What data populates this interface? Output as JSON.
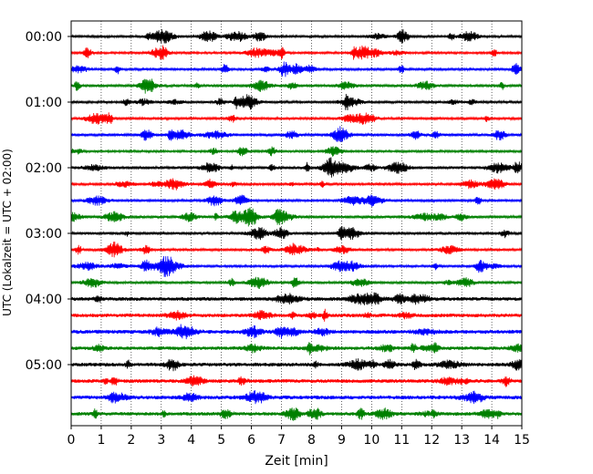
{
  "chart_data": {
    "type": "line",
    "title": "",
    "xlabel": "Zeit  [min]",
    "ylabel": "UTC (Lokalzeit = UTC + 02:00)",
    "xlim": [
      0,
      15
    ],
    "x_ticks": [
      0,
      1,
      2,
      3,
      4,
      5,
      6,
      7,
      8,
      9,
      10,
      11,
      12,
      13,
      14,
      15
    ],
    "x_tick_labels": [
      "0",
      "1",
      "2",
      "3",
      "4",
      "5",
      "6",
      "7",
      "8",
      "9",
      "10",
      "11",
      "12",
      "13",
      "14",
      "15"
    ],
    "y_tick_labels": [
      "00:00",
      "01:00",
      "02:00",
      "03:00",
      "04:00",
      "05:00"
    ],
    "vertical_grid": "dotted at every x tick",
    "minutes_per_trace": 15,
    "trace_start_times": [
      "00:00",
      "00:15",
      "00:30",
      "00:45",
      "01:00",
      "01:15",
      "01:30",
      "01:45",
      "02:00",
      "02:15",
      "02:30",
      "02:45",
      "03:00",
      "03:15",
      "03:30",
      "03:45",
      "04:00",
      "04:15",
      "04:30",
      "04:45",
      "05:00",
      "05:15",
      "05:30",
      "05:45"
    ],
    "color_cycle": [
      "#000000",
      "#ff0000",
      "#0000ff",
      "#008000"
    ],
    "trace_count": 24,
    "labeled_every_n_traces": 4
  }
}
